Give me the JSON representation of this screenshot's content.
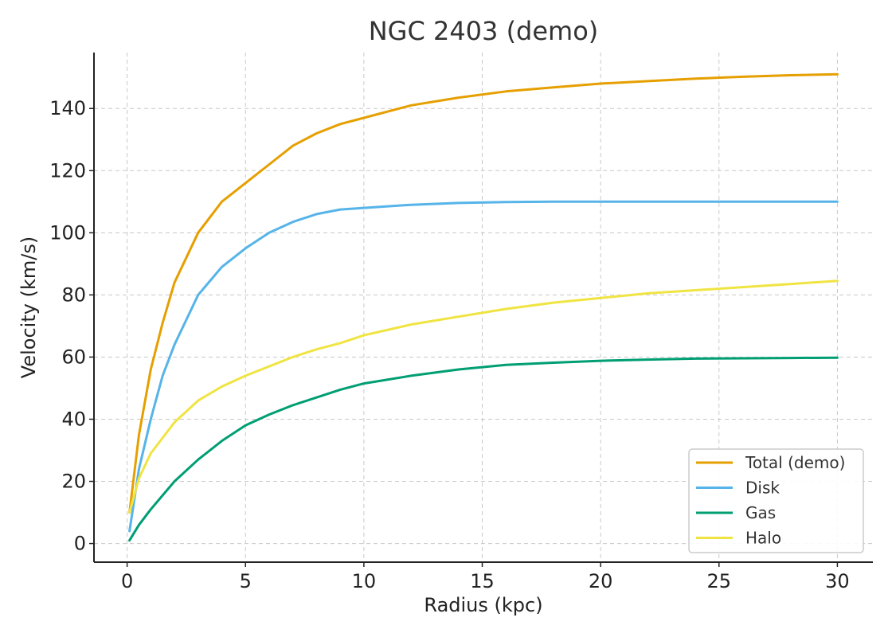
{
  "chart_data": {
    "type": "line",
    "title": "NGC 2403 (demo)",
    "xlabel": "Radius (kpc)",
    "ylabel": "Velocity (km/s)",
    "xlim": [
      -1.4,
      31.5
    ],
    "ylim": [
      -6,
      158
    ],
    "xticks": [
      0,
      5,
      10,
      15,
      20,
      25,
      30
    ],
    "yticks": [
      0,
      20,
      40,
      60,
      80,
      100,
      120,
      140
    ],
    "grid": true,
    "legend_position": "lower-right",
    "series": [
      {
        "name": "Total (demo)",
        "color": "#e69f00",
        "x": [
          0.1,
          0.5,
          1,
          1.5,
          2,
          3,
          4,
          5,
          6,
          7,
          8,
          9,
          10,
          12,
          14,
          16,
          18,
          20,
          22,
          24,
          26,
          28,
          30
        ],
        "y": [
          10,
          35,
          56,
          71,
          84,
          100,
          110,
          116,
          122,
          128,
          132,
          135,
          137,
          141,
          143.5,
          145.5,
          146.8,
          148,
          148.8,
          149.6,
          150.2,
          150.7,
          151
        ]
      },
      {
        "name": "Disk",
        "color": "#56b4e9",
        "x": [
          0.1,
          0.5,
          1,
          1.5,
          2,
          3,
          4,
          5,
          6,
          7,
          8,
          9,
          10,
          12,
          14,
          16,
          18,
          20,
          22,
          24,
          26,
          28,
          30
        ],
        "y": [
          4,
          24,
          40,
          54,
          64,
          80,
          89,
          95,
          100,
          103.5,
          106,
          107.5,
          108,
          109,
          109.6,
          109.9,
          110,
          110,
          110,
          110,
          110,
          110,
          110
        ]
      },
      {
        "name": "Gas",
        "color": "#009e73",
        "x": [
          0.1,
          0.5,
          1,
          2,
          3,
          4,
          5,
          6,
          7,
          8,
          9,
          10,
          12,
          14,
          16,
          18,
          20,
          22,
          24,
          26,
          28,
          30
        ],
        "y": [
          1,
          6,
          11,
          20,
          27,
          33,
          38,
          41.5,
          44.5,
          47,
          49.5,
          51.5,
          54,
          56,
          57.5,
          58.2,
          58.8,
          59.2,
          59.5,
          59.6,
          59.7,
          59.8
        ]
      },
      {
        "name": "Halo",
        "color": "#f0e442",
        "x": [
          0.1,
          0.5,
          1,
          2,
          3,
          4,
          5,
          6,
          7,
          8,
          9,
          10,
          12,
          14,
          16,
          18,
          20,
          22,
          24,
          26,
          28,
          30
        ],
        "y": [
          10,
          21,
          29,
          39,
          46,
          50.5,
          54,
          57,
          60,
          62.5,
          64.5,
          67,
          70.5,
          73,
          75.5,
          77.5,
          79,
          80.5,
          81.5,
          82.5,
          83.5,
          84.5
        ]
      }
    ]
  }
}
